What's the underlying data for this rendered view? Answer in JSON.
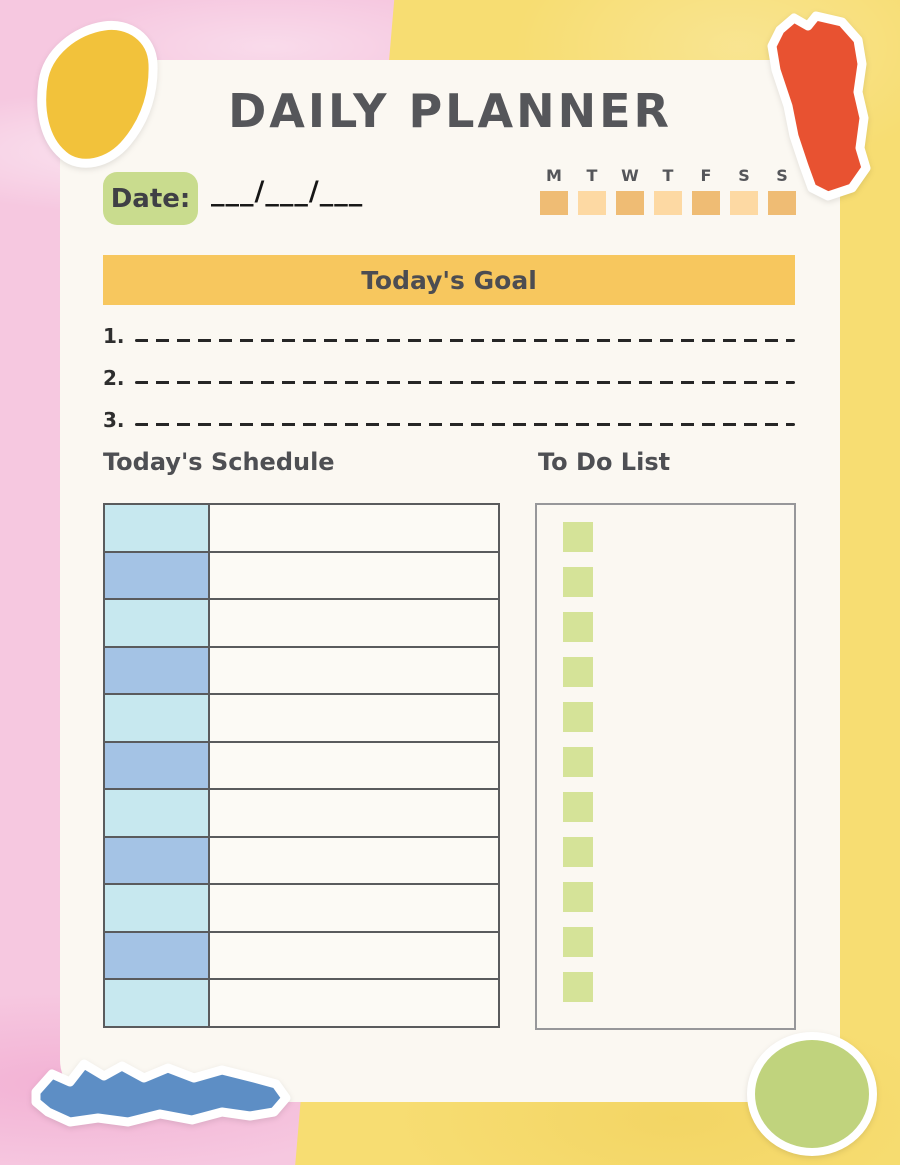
{
  "title": "DAILY PLANNER",
  "date": {
    "label": "Date:",
    "blanks": "___/___/___"
  },
  "week_tracker": {
    "days": [
      "M",
      "T",
      "W",
      "T",
      "F",
      "S",
      "S"
    ],
    "square_colors": [
      "#efbc74",
      "#fdd9a3",
      "#efbc74",
      "#fdd9a3",
      "#efbc74",
      "#fdd9a3",
      "#efbc74"
    ]
  },
  "goal": {
    "banner": "Today's Goal",
    "line_numbers": [
      "1.",
      "2.",
      "3."
    ]
  },
  "schedule": {
    "heading": "Today's Schedule",
    "row_count": 11,
    "time_column_colors": [
      "#c7e8ef",
      "#a4c3e5"
    ]
  },
  "todo": {
    "heading": "To Do List",
    "item_count": 11,
    "checkbox_color": "#d5e398"
  },
  "colors": {
    "bg_pink": "#f6c8e0",
    "bg_yellow": "#f7dd72",
    "card": "#fbf8f2",
    "ink": "#55565a",
    "date_pill": "#c9dc8e",
    "goal_banner": "#f7c75e",
    "day_dark": "#efbc74",
    "day_light": "#fdd9a3",
    "schedule_cyan": "#c7e8ef",
    "schedule_blue": "#a4c3e5",
    "todo_green": "#d5e398",
    "scrap_yellow": "#f2c23b",
    "scrap_red": "#e85231",
    "scrap_blue": "#5d8ec5",
    "scrap_green": "#c0d37d"
  }
}
